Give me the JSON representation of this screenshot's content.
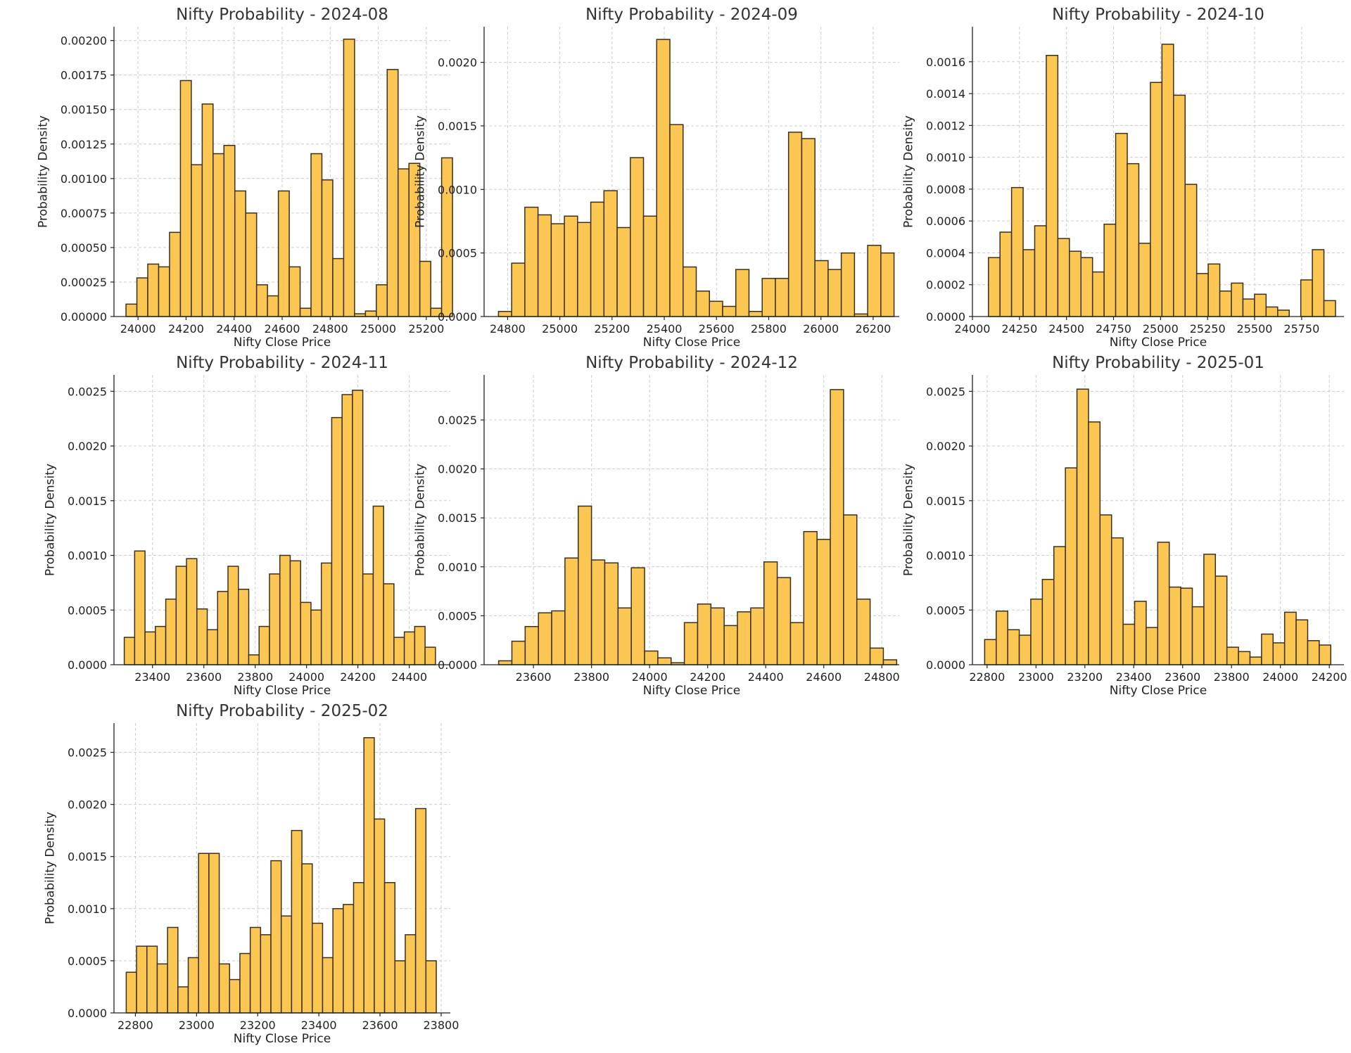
{
  "style": {
    "bar_color": "#fcc653",
    "bar_edge": "#3a3020",
    "grid_color": "#cccccc"
  },
  "chart_data": [
    {
      "type": "bar",
      "title": "Nifty Probability - 2024-08",
      "xlabel": "Nifty Close Price",
      "ylabel": "Probability Density",
      "xlim": [
        23900,
        25300
      ],
      "ylim": [
        0,
        0.0021
      ],
      "x_ticks": [
        24000,
        24200,
        24400,
        24600,
        24800,
        25000,
        25200
      ],
      "y_ticks": [
        0,
        0.00025,
        0.0005,
        0.00075,
        0.001,
        0.00125,
        0.0015,
        0.00175,
        0.002
      ],
      "y_tick_labels": [
        "0.00000",
        "0.00025",
        "0.00050",
        "0.00075",
        "0.00100",
        "0.00125",
        "0.00150",
        "0.00175",
        "0.00200"
      ],
      "bin_start": 23950,
      "bin_width": 45.3,
      "values": [
        9e-05,
        0.00028,
        0.00038,
        0.00036,
        0.00061,
        0.00171,
        0.0011,
        0.00154,
        0.00118,
        0.00124,
        0.00091,
        0.00075,
        0.00023,
        0.00015,
        0.00091,
        0.00036,
        6e-05,
        0.00118,
        0.00099,
        0.00042,
        0.00201,
        2e-05,
        4e-05,
        0.00023,
        0.00179,
        0.00107,
        0.00111,
        0.0004,
        6e-05,
        0.00115
      ]
    },
    {
      "type": "bar",
      "title": "Nifty Probability - 2024-09",
      "xlabel": "Nifty Close Price",
      "ylabel": "Probability Density",
      "xlim": [
        24710,
        26300
      ],
      "ylim": [
        0,
        0.00228
      ],
      "x_ticks": [
        24800,
        25000,
        25200,
        25400,
        25600,
        25800,
        26000,
        26200
      ],
      "y_ticks": [
        0,
        0.0005,
        0.001,
        0.0015,
        0.002
      ],
      "y_tick_labels": [
        "0.0000",
        "0.0005",
        "0.0010",
        "0.0015",
        "0.0020"
      ],
      "bin_start": 24765,
      "bin_width": 50.5,
      "values": [
        4e-05,
        0.00042,
        0.00086,
        0.0008,
        0.00073,
        0.00079,
        0.00074,
        0.0009,
        0.00099,
        0.0007,
        0.00125,
        0.00079,
        0.00218,
        0.00151,
        0.00039,
        0.0002,
        0.00012,
        8e-05,
        0.00037,
        4e-05,
        0.0003,
        0.0003,
        0.00145,
        0.0014,
        0.00044,
        0.00037,
        0.0005,
        2e-05,
        0.00056,
        0.0005
      ]
    },
    {
      "type": "bar",
      "title": "Nifty Probability - 2024-10",
      "xlabel": "Nifty Close Price",
      "ylabel": "Probability Density",
      "xlim": [
        24000,
        25975
      ],
      "ylim": [
        0,
        0.00182
      ],
      "x_ticks": [
        24000,
        24250,
        24500,
        24750,
        25000,
        25250,
        25500,
        25750
      ],
      "y_ticks": [
        0,
        0.0002,
        0.0004,
        0.0006,
        0.0008,
        0.001,
        0.0012,
        0.0014,
        0.0016
      ],
      "y_tick_labels": [
        "0.0000",
        "0.0002",
        "0.0004",
        "0.0006",
        "0.0008",
        "0.0010",
        "0.0012",
        "0.0014",
        "0.0016"
      ],
      "bin_start": 24085,
      "bin_width": 61.5,
      "values": [
        0.00037,
        0.00053,
        0.00081,
        0.00042,
        0.00057,
        0.00164,
        0.00049,
        0.00041,
        0.00037,
        0.00028,
        0.00058,
        0.00115,
        0.00096,
        0.00046,
        0.00147,
        0.00171,
        0.00139,
        0.00083,
        0.00027,
        0.00033,
        0.00016,
        0.00021,
        0.00011,
        0.00014,
        6e-05,
        4e-05,
        0.0,
        0.00023,
        0.00042,
        0.0001
      ]
    },
    {
      "type": "bar",
      "title": "Nifty Probability - 2024-11",
      "xlabel": "Nifty Close Price",
      "ylabel": "Probability Density",
      "xlim": [
        23250,
        24560
      ],
      "ylim": [
        0,
        0.00265
      ],
      "x_ticks": [
        23400,
        23600,
        23800,
        24000,
        24200,
        24400
      ],
      "y_ticks": [
        0,
        0.0005,
        0.001,
        0.0015,
        0.002,
        0.0025
      ],
      "y_tick_labels": [
        "0.0000",
        "0.0005",
        "0.0010",
        "0.0015",
        "0.0020",
        "0.0025"
      ],
      "bin_start": 23290,
      "bin_width": 40.4,
      "values": [
        0.00025,
        0.00104,
        0.0003,
        0.00035,
        0.0006,
        0.0009,
        0.00097,
        0.00051,
        0.00032,
        0.00067,
        0.0009,
        0.00069,
        9e-05,
        0.00035,
        0.00083,
        0.001,
        0.00095,
        0.00057,
        0.0005,
        0.00093,
        0.00226,
        0.00247,
        0.00251,
        0.00083,
        0.00145,
        0.00074,
        0.00025,
        0.0003,
        0.00035,
        0.00016
      ]
    },
    {
      "type": "bar",
      "title": "Nifty Probability - 2024-12",
      "xlabel": "Nifty Close Price",
      "ylabel": "Probability Density",
      "xlim": [
        23430,
        24860
      ],
      "ylim": [
        0,
        0.00296
      ],
      "x_ticks": [
        23600,
        23800,
        24000,
        24200,
        24400,
        24600,
        24800
      ],
      "y_ticks": [
        0,
        0.0005,
        0.001,
        0.0015,
        0.002,
        0.0025
      ],
      "y_tick_labels": [
        "0.0000",
        "0.0005",
        "0.0010",
        "0.0015",
        "0.0020",
        "0.0025"
      ],
      "bin_start": 23480,
      "bin_width": 45.7,
      "values": [
        4e-05,
        0.00024,
        0.00039,
        0.00053,
        0.00055,
        0.00109,
        0.00162,
        0.00107,
        0.00104,
        0.00058,
        0.00099,
        0.00014,
        7e-05,
        2e-05,
        0.00043,
        0.00062,
        0.00058,
        0.0004,
        0.00054,
        0.00058,
        0.00105,
        0.00089,
        0.00043,
        0.00136,
        0.00128,
        0.00281,
        0.00153,
        0.00067,
        0.00017,
        5e-05
      ]
    },
    {
      "type": "bar",
      "title": "Nifty Probability - 2025-01",
      "xlabel": "Nifty Close Price",
      "ylabel": "Probability Density",
      "xlim": [
        22740,
        24260
      ],
      "ylim": [
        0,
        0.00265
      ],
      "x_ticks": [
        22800,
        23000,
        23200,
        23400,
        23600,
        23800,
        24000,
        24200
      ],
      "y_ticks": [
        0,
        0.0005,
        0.001,
        0.0015,
        0.002,
        0.0025
      ],
      "y_tick_labels": [
        "0.0000",
        "0.0005",
        "0.0010",
        "0.0015",
        "0.0020",
        "0.0025"
      ],
      "bin_start": 22790,
      "bin_width": 47.2,
      "values": [
        0.00023,
        0.00049,
        0.00032,
        0.00027,
        0.0006,
        0.00078,
        0.00108,
        0.0018,
        0.00252,
        0.00222,
        0.00137,
        0.00116,
        0.00037,
        0.00058,
        0.00034,
        0.00112,
        0.00071,
        0.0007,
        0.00053,
        0.00101,
        0.00081,
        0.00016,
        0.00012,
        7e-05,
        0.00028,
        0.0002,
        0.00048,
        0.00041,
        0.00022,
        0.00018
      ]
    },
    {
      "type": "bar",
      "title": "Nifty Probability - 2025-02",
      "xlabel": "Nifty Close Price",
      "ylabel": "Probability Density",
      "xlim": [
        22730,
        23830
      ],
      "ylim": [
        0,
        0.00278
      ],
      "x_ticks": [
        22800,
        23000,
        23200,
        23400,
        23600,
        23800
      ],
      "y_ticks": [
        0,
        0.0005,
        0.001,
        0.0015,
        0.002,
        0.0025
      ],
      "y_tick_labels": [
        "0.0000",
        "0.0005",
        "0.0010",
        "0.0015",
        "0.0020",
        "0.0025"
      ],
      "bin_start": 22770,
      "bin_width": 33.8,
      "values": [
        0.00039,
        0.00064,
        0.00064,
        0.00047,
        0.00082,
        0.00025,
        0.00053,
        0.00153,
        0.00153,
        0.00047,
        0.00032,
        0.00057,
        0.00082,
        0.00075,
        0.00146,
        0.00093,
        0.00175,
        0.00143,
        0.00086,
        0.00053,
        0.001,
        0.00104,
        0.00125,
        0.00264,
        0.00186,
        0.00125,
        0.0005,
        0.00075,
        0.00196,
        0.0005
      ]
    }
  ]
}
